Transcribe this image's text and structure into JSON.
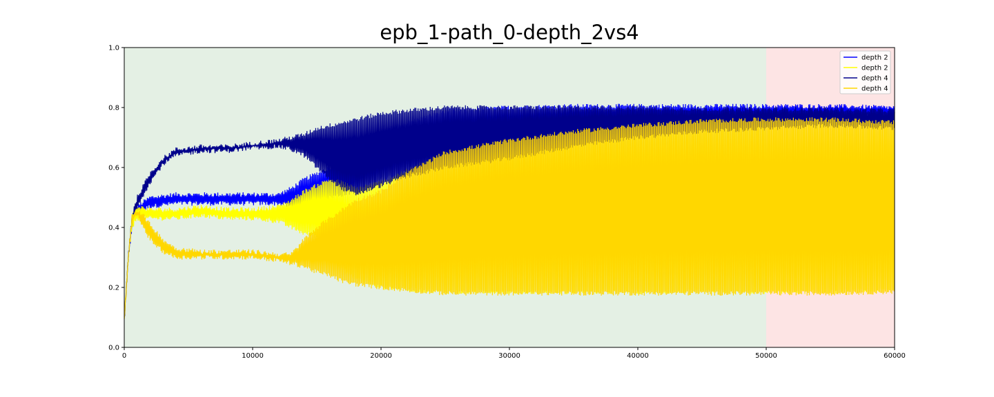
{
  "chart_data": {
    "type": "line",
    "title": "epb_1-path_0-depth_2vs4",
    "xlabel": "",
    "ylabel": "",
    "xlim": [
      0,
      60000
    ],
    "ylim": [
      0,
      1
    ],
    "x_ticks": [
      0,
      10000,
      20000,
      30000,
      40000,
      50000,
      60000
    ],
    "x_tick_labels": [
      "0",
      "10000",
      "20000",
      "30000",
      "40000",
      "50000",
      "60000"
    ],
    "y_ticks": [
      0,
      0.2,
      0.4,
      0.6,
      0.8,
      1.0
    ],
    "y_tick_labels": [
      "0.0",
      "0.2",
      "0.4",
      "0.6",
      "0.8",
      "1.0"
    ],
    "grid": false,
    "legend_position": "top-right",
    "shaded_regions": [
      {
        "x_start": 0,
        "x_end": 50000,
        "color": "#e4f0e4"
      },
      {
        "x_start": 50000,
        "x_end": 60000,
        "color": "#fde4e4"
      }
    ],
    "series": [
      {
        "name": "depth 2",
        "color": "#0000ff",
        "x": [
          0,
          300,
          600,
          1000,
          2000,
          4000,
          6000,
          8000,
          10000,
          12000,
          13000,
          14000,
          15000,
          16000,
          17000,
          18000,
          20000,
          25000,
          30000,
          35000,
          40000,
          45000,
          50000,
          55000,
          60000
        ],
        "y_upper": [
          0.1,
          0.3,
          0.44,
          0.47,
          0.5,
          0.51,
          0.51,
          0.51,
          0.51,
          0.51,
          0.53,
          0.56,
          0.58,
          0.6,
          0.62,
          0.66,
          0.72,
          0.79,
          0.8,
          0.805,
          0.805,
          0.805,
          0.805,
          0.805,
          0.8
        ],
        "y_lower": [
          0.08,
          0.28,
          0.4,
          0.45,
          0.47,
          0.48,
          0.48,
          0.48,
          0.48,
          0.48,
          0.47,
          0.46,
          0.46,
          0.5,
          0.51,
          0.52,
          0.56,
          0.62,
          0.68,
          0.72,
          0.74,
          0.75,
          0.76,
          0.77,
          0.77
        ]
      },
      {
        "name": "depth 2",
        "color": "#ffff00",
        "x": [
          0,
          300,
          600,
          1000,
          2000,
          4000,
          6000,
          8000,
          10000,
          12000,
          13000,
          14000,
          15000,
          16000,
          17000,
          18000,
          20000,
          25000,
          30000,
          35000,
          40000,
          45000,
          50000,
          55000,
          60000
        ],
        "y_upper": [
          0.1,
          0.3,
          0.44,
          0.47,
          0.46,
          0.46,
          0.47,
          0.46,
          0.46,
          0.47,
          0.49,
          0.52,
          0.54,
          0.56,
          0.55,
          0.53,
          0.55,
          0.65,
          0.7,
          0.73,
          0.75,
          0.755,
          0.755,
          0.755,
          0.75
        ],
        "y_lower": [
          0.08,
          0.28,
          0.4,
          0.43,
          0.43,
          0.43,
          0.44,
          0.43,
          0.43,
          0.42,
          0.4,
          0.38,
          0.37,
          0.3,
          0.26,
          0.23,
          0.2,
          0.185,
          0.185,
          0.185,
          0.185,
          0.185,
          0.185,
          0.185,
          0.19
        ]
      },
      {
        "name": "depth 4",
        "color": "#00008b",
        "x": [
          0,
          300,
          600,
          1000,
          2000,
          3000,
          4000,
          6000,
          8000,
          10000,
          12000,
          13000,
          14000,
          15000,
          16000,
          17000,
          18000,
          20000,
          22000,
          25000,
          30000,
          35000,
          40000,
          45000,
          50000,
          55000,
          60000
        ],
        "y_upper": [
          0.1,
          0.3,
          0.44,
          0.5,
          0.58,
          0.63,
          0.66,
          0.67,
          0.67,
          0.68,
          0.69,
          0.7,
          0.71,
          0.73,
          0.74,
          0.75,
          0.76,
          0.78,
          0.79,
          0.8,
          0.8,
          0.8,
          0.8,
          0.795,
          0.795,
          0.795,
          0.79
        ],
        "y_lower": [
          0.08,
          0.28,
          0.42,
          0.47,
          0.55,
          0.61,
          0.64,
          0.655,
          0.655,
          0.665,
          0.67,
          0.66,
          0.64,
          0.6,
          0.56,
          0.53,
          0.51,
          0.54,
          0.57,
          0.6,
          0.63,
          0.67,
          0.7,
          0.72,
          0.73,
          0.74,
          0.73
        ]
      },
      {
        "name": "depth 4",
        "color": "#ffd700",
        "x": [
          0,
          300,
          600,
          1000,
          1500,
          2000,
          3000,
          4000,
          6000,
          8000,
          10000,
          12000,
          13000,
          14000,
          15000,
          16000,
          17000,
          18000,
          20000,
          22000,
          25000,
          30000,
          35000,
          40000,
          45000,
          50000,
          55000,
          60000
        ],
        "y_upper": [
          0.1,
          0.3,
          0.44,
          0.46,
          0.44,
          0.41,
          0.36,
          0.33,
          0.32,
          0.32,
          0.32,
          0.31,
          0.31,
          0.36,
          0.4,
          0.43,
          0.46,
          0.49,
          0.52,
          0.58,
          0.65,
          0.69,
          0.72,
          0.74,
          0.755,
          0.76,
          0.76,
          0.75
        ],
        "y_lower": [
          0.08,
          0.28,
          0.42,
          0.44,
          0.4,
          0.36,
          0.32,
          0.3,
          0.3,
          0.3,
          0.3,
          0.29,
          0.28,
          0.27,
          0.25,
          0.24,
          0.22,
          0.21,
          0.2,
          0.19,
          0.18,
          0.18,
          0.18,
          0.18,
          0.18,
          0.18,
          0.18,
          0.185
        ]
      }
    ]
  }
}
